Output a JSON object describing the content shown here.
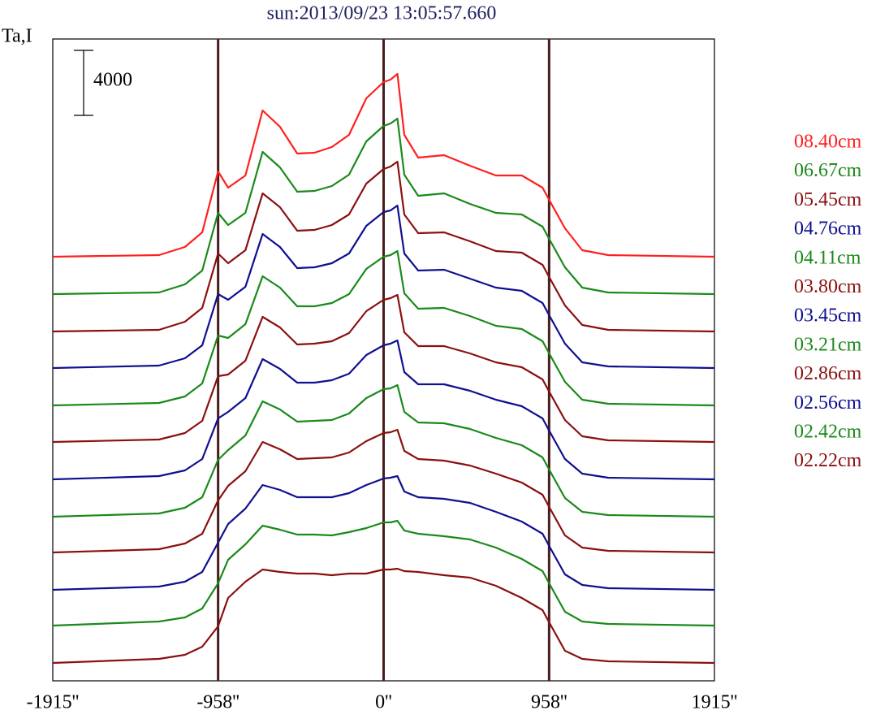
{
  "chart_data": {
    "type": "line",
    "title": "sun:2013/09/23 13:05:57.660",
    "y_label": "Ta,I",
    "scale_bar": 4000,
    "xlim": [
      -1915,
      1915
    ],
    "ylim": [
      0,
      39500
    ],
    "xticks": [
      {
        "value": -1915,
        "label": "-1915''"
      },
      {
        "value": -958,
        "label": "-958''"
      },
      {
        "value": 0,
        "label": "0''"
      },
      {
        "value": 958,
        "label": "958''"
      },
      {
        "value": 1915,
        "label": "1915''"
      }
    ],
    "x": [
      -1915,
      -1300,
      -1150,
      -1050,
      -958,
      -900,
      -800,
      -700,
      -600,
      -500,
      -400,
      -300,
      -200,
      -100,
      0,
      40,
      80,
      120,
      200,
      350,
      500,
      650,
      800,
      920,
      958,
      1050,
      1150,
      1300,
      1915
    ],
    "series": [
      {
        "name": "08.40cm",
        "color": "#ff2020",
        "values": [
          26100,
          26200,
          26700,
          27600,
          31350,
          30350,
          31100,
          35100,
          34100,
          32450,
          32500,
          32850,
          33600,
          35850,
          36850,
          37000,
          37350,
          33600,
          32200,
          32350,
          31700,
          31100,
          31100,
          30350,
          29600,
          27850,
          26500,
          26200,
          26100
        ]
      },
      {
        "name": "06.67cm",
        "color": "#1a8a1a",
        "values": [
          23800,
          23900,
          24400,
          25250,
          28800,
          28050,
          28800,
          32550,
          31600,
          30100,
          30150,
          30450,
          31150,
          33200,
          34150,
          34300,
          34600,
          31150,
          29850,
          30000,
          29350,
          28800,
          28700,
          27950,
          27200,
          25450,
          24200,
          23900,
          23800
        ]
      },
      {
        "name": "05.45cm",
        "color": "#8b1010",
        "values": [
          21500,
          21600,
          22100,
          22950,
          26300,
          25700,
          26500,
          30000,
          29150,
          27700,
          27750,
          28050,
          28700,
          30600,
          31500,
          31650,
          31950,
          28700,
          27550,
          27600,
          27050,
          26450,
          26350,
          25600,
          24850,
          23100,
          21900,
          21600,
          21500
        ]
      },
      {
        "name": "04.76cm",
        "color": "#101090",
        "values": [
          19250,
          19400,
          19850,
          20650,
          23800,
          23450,
          24250,
          27500,
          26700,
          25400,
          25450,
          25700,
          26300,
          28000,
          28850,
          28950,
          29250,
          26300,
          25250,
          25300,
          24750,
          24200,
          24000,
          23250,
          22500,
          20750,
          19600,
          19350,
          19250
        ]
      },
      {
        "name": "04.11cm",
        "color": "#1a8a1a",
        "values": [
          16950,
          17100,
          17500,
          18300,
          21250,
          21100,
          21950,
          24900,
          24200,
          23050,
          23050,
          23250,
          23800,
          25350,
          26100,
          26200,
          26450,
          23850,
          22900,
          22950,
          22450,
          21850,
          21650,
          20900,
          20150,
          18400,
          17300,
          17050,
          16950
        ]
      },
      {
        "name": "03.80cm",
        "color": "#8b1010",
        "values": [
          14700,
          14850,
          15250,
          16000,
          18750,
          18850,
          19700,
          22400,
          21750,
          20700,
          20750,
          20900,
          21400,
          22750,
          23450,
          23550,
          23750,
          21450,
          20600,
          20600,
          20150,
          19600,
          19300,
          18550,
          17800,
          16050,
          15050,
          14800,
          14700
        ]
      },
      {
        "name": "03.45cm",
        "color": "#101090",
        "values": [
          12400,
          12600,
          12950,
          13650,
          16150,
          16550,
          17400,
          19800,
          19200,
          18350,
          18350,
          18500,
          18900,
          20050,
          20650,
          20750,
          20950,
          19000,
          18250,
          18250,
          17850,
          17300,
          16900,
          16150,
          15400,
          13650,
          12750,
          12500,
          12400
        ]
      },
      {
        "name": "03.21cm",
        "color": "#1a8a1a",
        "values": [
          10100,
          10300,
          10650,
          11300,
          13600,
          14200,
          15100,
          17200,
          16700,
          15950,
          16000,
          16050,
          16450,
          17400,
          17950,
          18000,
          18200,
          16550,
          15900,
          15850,
          15500,
          14950,
          14500,
          13750,
          13000,
          11250,
          10400,
          10200,
          10100
        ]
      },
      {
        "name": "02.86cm",
        "color": "#8b1010",
        "values": [
          7900,
          8100,
          8450,
          9050,
          11100,
          12000,
          12900,
          14700,
          14250,
          13650,
          13700,
          13750,
          14050,
          14750,
          15250,
          15300,
          15450,
          14150,
          13650,
          13550,
          13250,
          12750,
          12200,
          11450,
          10700,
          8950,
          8200,
          8000,
          7900
        ]
      },
      {
        "name": "02.56cm",
        "color": "#101090",
        "values": [
          5600,
          5800,
          6100,
          6700,
          8500,
          9650,
          10600,
          12050,
          11750,
          11300,
          11300,
          11300,
          11550,
          12050,
          12450,
          12500,
          12600,
          11650,
          11300,
          11200,
          10950,
          10400,
          9800,
          9050,
          8300,
          6550,
          5900,
          5700,
          5600
        ]
      },
      {
        "name": "02.42cm",
        "color": "#1a8a1a",
        "values": [
          3400,
          3650,
          3900,
          4450,
          6000,
          7450,
          8400,
          9550,
          9300,
          9000,
          9000,
          8950,
          9150,
          9400,
          9750,
          9750,
          9850,
          9250,
          9050,
          8900,
          8700,
          8200,
          7500,
          6750,
          6000,
          4250,
          3650,
          3500,
          3400
        ]
      },
      {
        "name": "02.22cm",
        "color": "#8b1010",
        "values": [
          1100,
          1350,
          1600,
          2100,
          3350,
          5100,
          6100,
          6850,
          6700,
          6600,
          6600,
          6500,
          6600,
          6600,
          6850,
          6850,
          6900,
          6750,
          6700,
          6500,
          6350,
          5850,
          5100,
          4350,
          3600,
          1850,
          1350,
          1200,
          1100
        ]
      }
    ]
  }
}
